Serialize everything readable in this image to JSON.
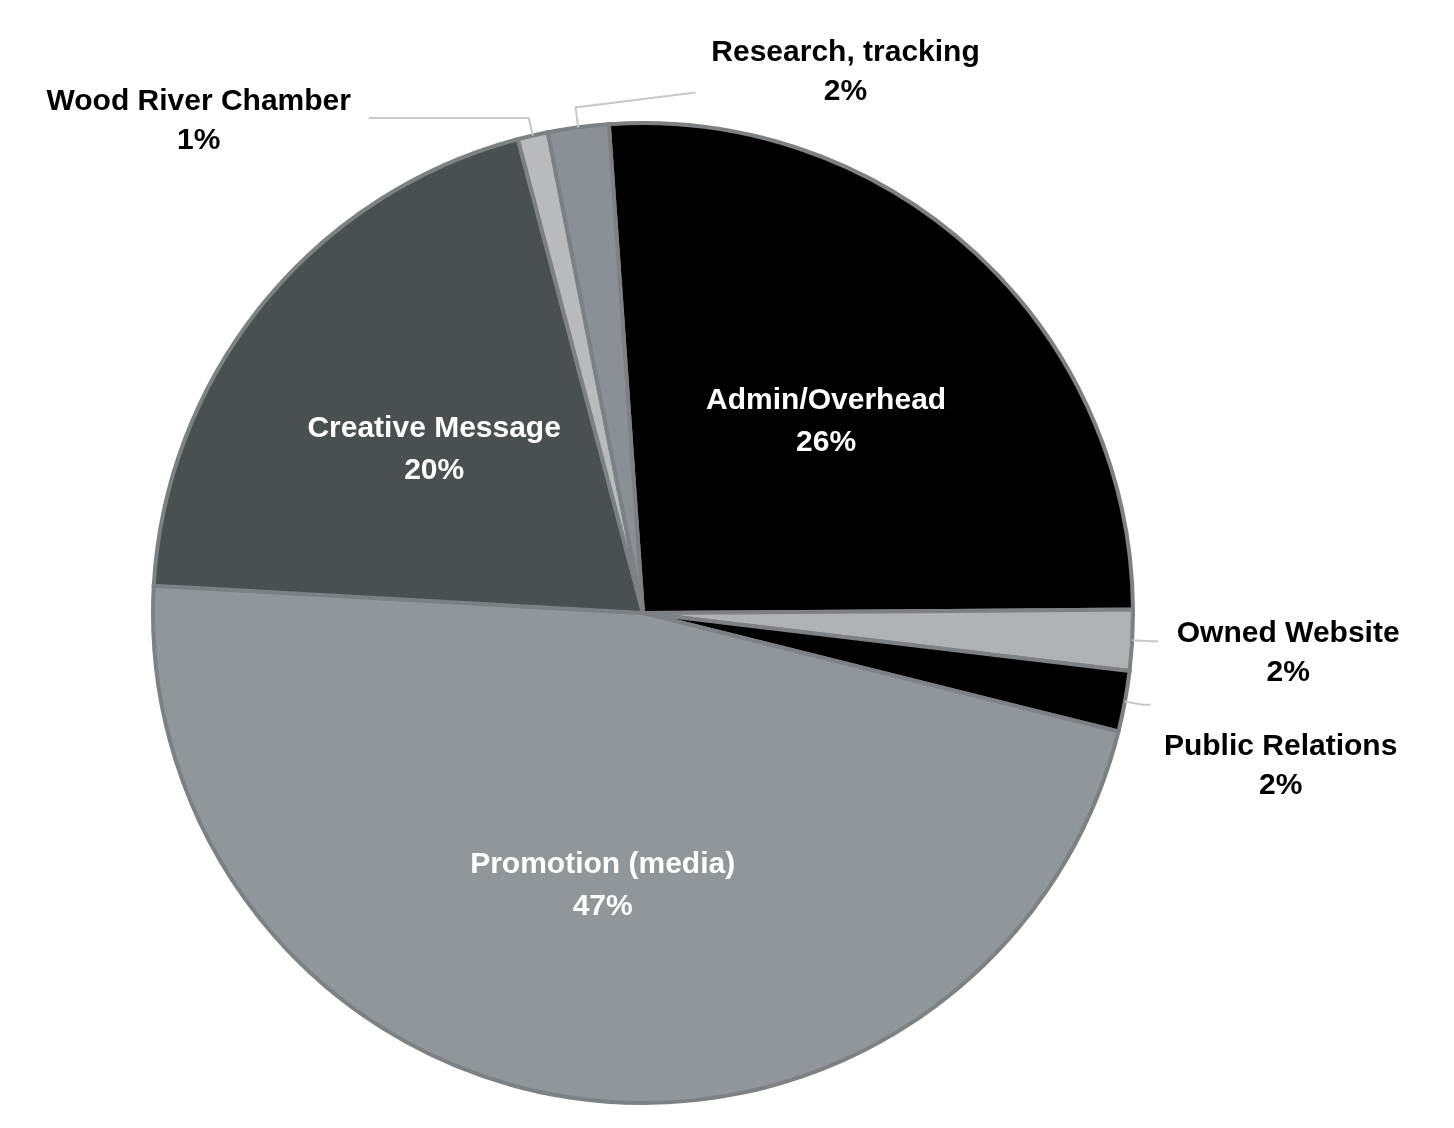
{
  "chart_data": {
    "type": "pie",
    "categories": [
      "Admin/Overhead",
      "Owned Website",
      "Public Relations",
      "Promotion (media)",
      "Creative Message",
      "Wood River Chamber",
      "Research, tracking"
    ],
    "values": [
      26,
      2,
      2,
      47,
      20,
      1,
      2
    ],
    "value_labels": [
      "26%",
      "2%",
      "2%",
      "47%",
      "20%",
      "1%",
      "2%"
    ],
    "colors": [
      "#000000",
      "#b0b2b4",
      "#000000",
      "#91969a",
      "#4a4f50",
      "#b8babc",
      "#8b9094"
    ],
    "legend": false
  }
}
